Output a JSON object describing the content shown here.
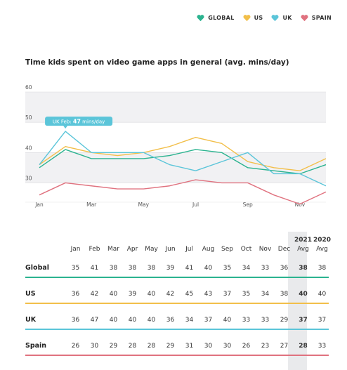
{
  "legend": [
    {
      "label": "GLOBAL",
      "color": "#2bb38f",
      "icon": "heart-icon"
    },
    {
      "label": "US",
      "color": "#f2bf4a",
      "icon": "heart-icon"
    },
    {
      "label": "UK",
      "color": "#5bc5d9",
      "icon": "heart-icon"
    },
    {
      "label": "SPAIN",
      "color": "#e0727f",
      "icon": "heart-icon"
    }
  ],
  "chart_title": "Time kids spent on video game apps in general (avg. mins/day)",
  "chart_data": {
    "type": "line",
    "title": "Time kids spent on video game apps in general (avg. mins/day)",
    "categories": [
      "Jan",
      "Feb",
      "Mar",
      "Apr",
      "May",
      "Jun",
      "Jul",
      "Aug",
      "Sep",
      "Oct",
      "Nov",
      "Dec"
    ],
    "x_tick_labels": [
      "Jan",
      "Mar",
      "May",
      "Jul",
      "Sep",
      "Nov"
    ],
    "y_ticks": [
      30,
      40,
      50,
      60
    ],
    "ylim": [
      25,
      60
    ],
    "grid": true,
    "legend_position": "top-right",
    "series": [
      {
        "name": "GLOBAL",
        "color": "#2bb38f",
        "values": [
          35,
          41,
          38,
          38,
          38,
          39,
          41,
          40,
          35,
          34,
          33,
          36
        ]
      },
      {
        "name": "US",
        "color": "#f2bf4a",
        "values": [
          36,
          42,
          40,
          39,
          40,
          42,
          45,
          43,
          37,
          35,
          34,
          38
        ]
      },
      {
        "name": "UK",
        "color": "#5bc5d9",
        "values": [
          36,
          47,
          40,
          40,
          40,
          36,
          34,
          37,
          40,
          33,
          33,
          29
        ]
      },
      {
        "name": "SPAIN",
        "color": "#e0727f",
        "values": [
          26,
          30,
          29,
          28,
          28,
          29,
          31,
          30,
          30,
          26,
          23,
          27
        ]
      }
    ],
    "annotation": {
      "prefix": "UK Feb: ",
      "value": "47",
      "suffix": " mins/day",
      "series": "UK",
      "category": "Feb"
    }
  },
  "table": {
    "year_headers": {
      "avg_2021": "2021",
      "avg_2020": "2020"
    },
    "months": [
      "Jan",
      "Feb",
      "Mar",
      "Apr",
      "May",
      "Jun",
      "Jul",
      "Aug",
      "Sep",
      "Oct",
      "Nov",
      "Dec"
    ],
    "avg_label": "Avg",
    "rows": [
      {
        "label": "Global",
        "color": "#2bb38f",
        "values": [
          "35",
          "41",
          "38",
          "38",
          "38",
          "39",
          "41",
          "40",
          "35",
          "34",
          "33",
          "36"
        ],
        "avg_2021": "38",
        "avg_2020": "38"
      },
      {
        "label": "US",
        "color": "#f2bf4a",
        "values": [
          "36",
          "42",
          "40",
          "39",
          "40",
          "42",
          "45",
          "43",
          "37",
          "35",
          "34",
          "38"
        ],
        "avg_2021": "40",
        "avg_2020": "40"
      },
      {
        "label": "UK",
        "color": "#5bc5d9",
        "values": [
          "36",
          "47",
          "40",
          "40",
          "40",
          "36",
          "34",
          "37",
          "40",
          "33",
          "33",
          "29"
        ],
        "avg_2021": "37",
        "avg_2020": "37"
      },
      {
        "label": "Spain",
        "color": "#e0727f",
        "values": [
          "26",
          "30",
          "29",
          "28",
          "28",
          "29",
          "31",
          "30",
          "30",
          "26",
          "23",
          "27"
        ],
        "avg_2021": "28",
        "avg_2020": "33"
      }
    ]
  }
}
